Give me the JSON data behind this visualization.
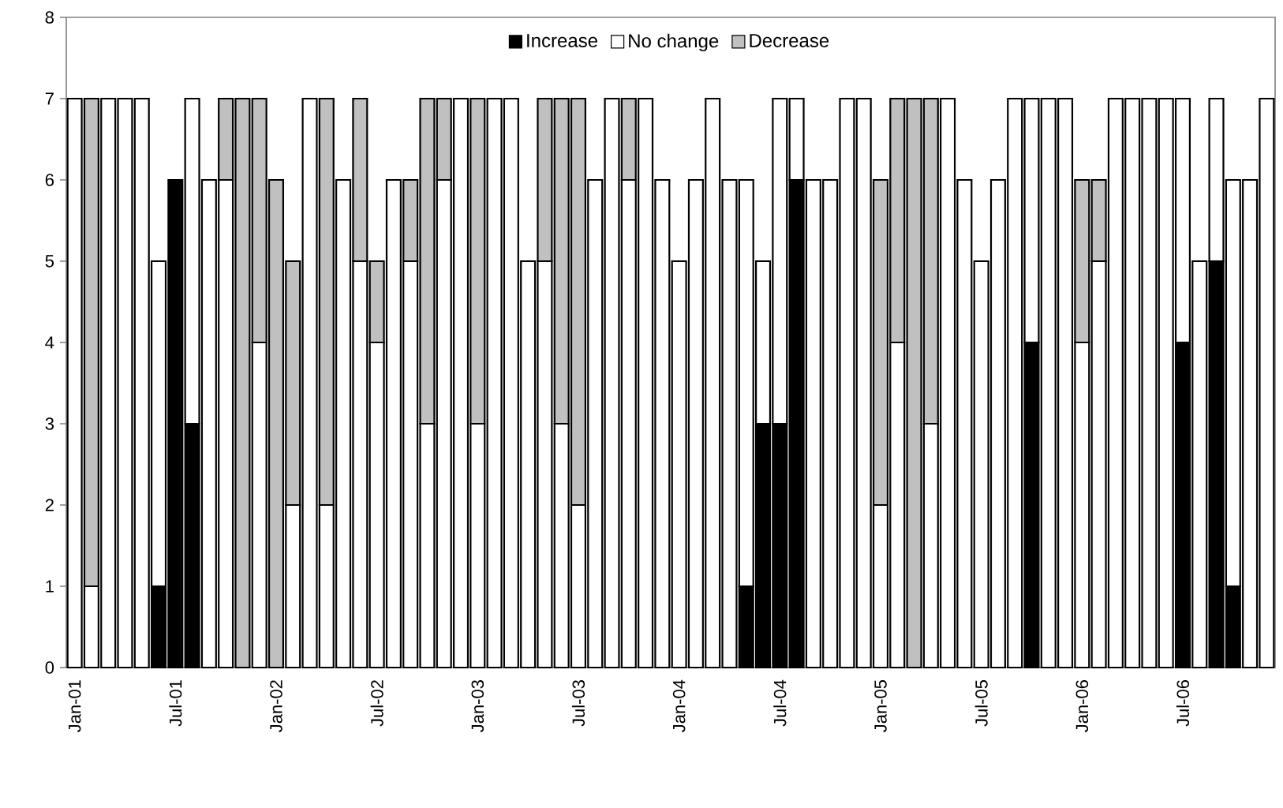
{
  "chart_data": {
    "type": "bar",
    "stacked": true,
    "legend": "top",
    "grid": false,
    "categories": [
      "Jan-01",
      null,
      null,
      null,
      null,
      null,
      "Jul-01",
      null,
      null,
      null,
      null,
      null,
      "Jan-02",
      null,
      null,
      null,
      null,
      null,
      "Jul-02",
      null,
      null,
      null,
      null,
      null,
      "Jan-03",
      null,
      null,
      null,
      null,
      null,
      "Jul-03",
      null,
      null,
      null,
      null,
      null,
      "Jan-04",
      null,
      null,
      null,
      null,
      null,
      "Jul-04",
      null,
      null,
      null,
      null,
      null,
      "Jan-05",
      null,
      null,
      null,
      null,
      null,
      "Jul-05",
      null,
      null,
      null,
      null,
      null,
      "Jan-06",
      null,
      null,
      null,
      null,
      null,
      "Jul-06",
      null,
      null,
      null,
      null,
      null
    ],
    "ylim": [
      0,
      8
    ],
    "yticks": [
      0,
      1,
      2,
      3,
      4,
      5,
      6,
      7,
      8
    ],
    "series": [
      {
        "name": "Increase",
        "color": "#000000",
        "values": [
          0,
          0,
          0,
          0,
          0,
          1,
          6,
          3,
          0,
          0,
          0,
          0,
          0,
          0,
          0,
          0,
          0,
          0,
          0,
          0,
          0,
          0,
          0,
          0,
          0,
          0,
          0,
          0,
          0,
          0,
          0,
          0,
          0,
          0,
          0,
          0,
          0,
          0,
          0,
          0,
          1,
          3,
          3,
          6,
          0,
          0,
          0,
          0,
          0,
          0,
          0,
          0,
          0,
          0,
          0,
          0,
          0,
          4,
          0,
          0,
          0,
          0,
          0,
          0,
          0,
          0,
          4,
          0,
          5,
          1,
          0,
          0
        ]
      },
      {
        "name": "No change",
        "color": "#ffffff",
        "values": [
          7,
          1,
          7,
          7,
          7,
          4,
          0,
          4,
          6,
          6,
          0,
          4,
          0,
          2,
          7,
          2,
          6,
          5,
          4,
          6,
          5,
          3,
          6,
          7,
          3,
          7,
          7,
          5,
          5,
          3,
          2,
          6,
          7,
          6,
          7,
          6,
          5,
          6,
          7,
          6,
          5,
          2,
          4,
          1,
          6,
          6,
          7,
          7,
          2,
          4,
          0,
          3,
          7,
          6,
          5,
          6,
          7,
          3,
          7,
          7,
          4,
          5,
          7,
          7,
          7,
          7,
          3,
          5,
          2,
          5,
          6,
          7
        ]
      },
      {
        "name": "Decrease",
        "color": "#c0c0c0",
        "values": [
          0,
          6,
          0,
          0,
          0,
          0,
          0,
          0,
          0,
          1,
          7,
          3,
          6,
          3,
          0,
          5,
          0,
          2,
          1,
          0,
          1,
          4,
          1,
          0,
          4,
          0,
          0,
          0,
          2,
          4,
          5,
          0,
          0,
          1,
          0,
          0,
          0,
          0,
          0,
          0,
          0,
          0,
          0,
          0,
          0,
          0,
          0,
          0,
          4,
          3,
          7,
          4,
          0,
          0,
          0,
          0,
          0,
          0,
          0,
          0,
          2,
          1,
          0,
          0,
          0,
          0,
          0,
          0,
          0,
          0,
          0,
          0
        ]
      }
    ]
  }
}
